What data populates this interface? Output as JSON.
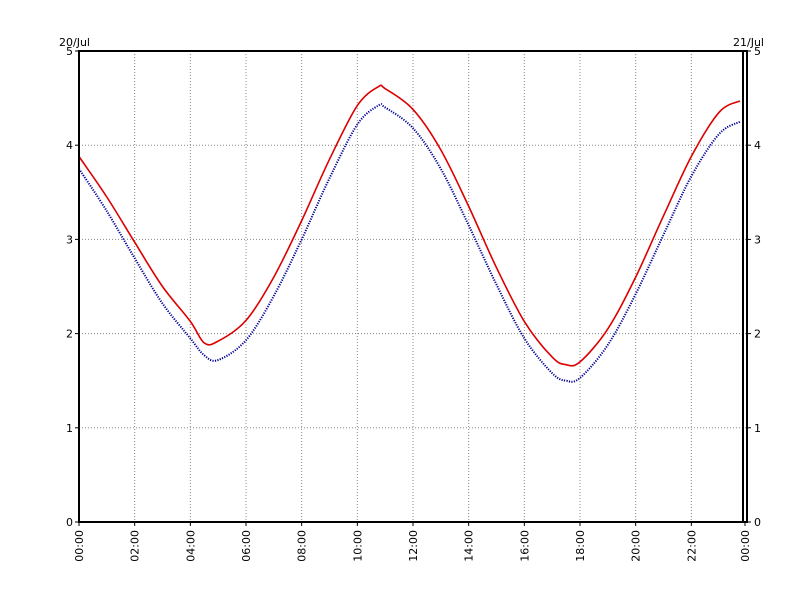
{
  "chart_data": {
    "type": "line",
    "title": "",
    "xlabel": "",
    "ylabel": "",
    "start_date_label": "20/Jul",
    "end_date_label": "21/Jul",
    "xlim": [
      "00:00",
      "00:00"
    ],
    "ylim": [
      0,
      5
    ],
    "y_ticks": [
      "0",
      "1",
      "2",
      "3",
      "4",
      "5"
    ],
    "x_ticks": [
      "00:00",
      "02:00",
      "04:00",
      "06:00",
      "08:00",
      "10:00",
      "12:00",
      "14:00",
      "16:00",
      "18:00",
      "20:00",
      "22:00",
      "00:00"
    ],
    "grid": true,
    "legend": "none",
    "x": [
      "00:00",
      "01:00",
      "02:00",
      "03:00",
      "04:00",
      "04:30",
      "05:00",
      "06:00",
      "07:00",
      "08:00",
      "09:00",
      "10:00",
      "10:45",
      "11:00",
      "12:00",
      "13:00",
      "14:00",
      "15:00",
      "16:00",
      "17:00",
      "17:30",
      "18:00",
      "19:00",
      "20:00",
      "21:00",
      "22:00",
      "23:00",
      "23:45"
    ],
    "series": [
      {
        "color": "#dd0000",
        "style": "solid",
        "values": [
          3.88,
          3.45,
          2.97,
          2.5,
          2.13,
          1.9,
          1.92,
          2.14,
          2.6,
          3.2,
          3.85,
          4.42,
          4.62,
          4.6,
          4.38,
          3.95,
          3.35,
          2.7,
          2.13,
          1.75,
          1.67,
          1.7,
          2.05,
          2.6,
          3.25,
          3.88,
          4.35,
          4.47
        ]
      },
      {
        "color": "#000099",
        "style": "dotted",
        "values": [
          3.75,
          3.3,
          2.8,
          2.32,
          1.95,
          1.77,
          1.72,
          1.93,
          2.4,
          3.0,
          3.65,
          4.22,
          4.42,
          4.4,
          4.18,
          3.75,
          3.15,
          2.52,
          1.95,
          1.58,
          1.5,
          1.53,
          1.88,
          2.42,
          3.05,
          3.67,
          4.12,
          4.25
        ]
      }
    ]
  }
}
